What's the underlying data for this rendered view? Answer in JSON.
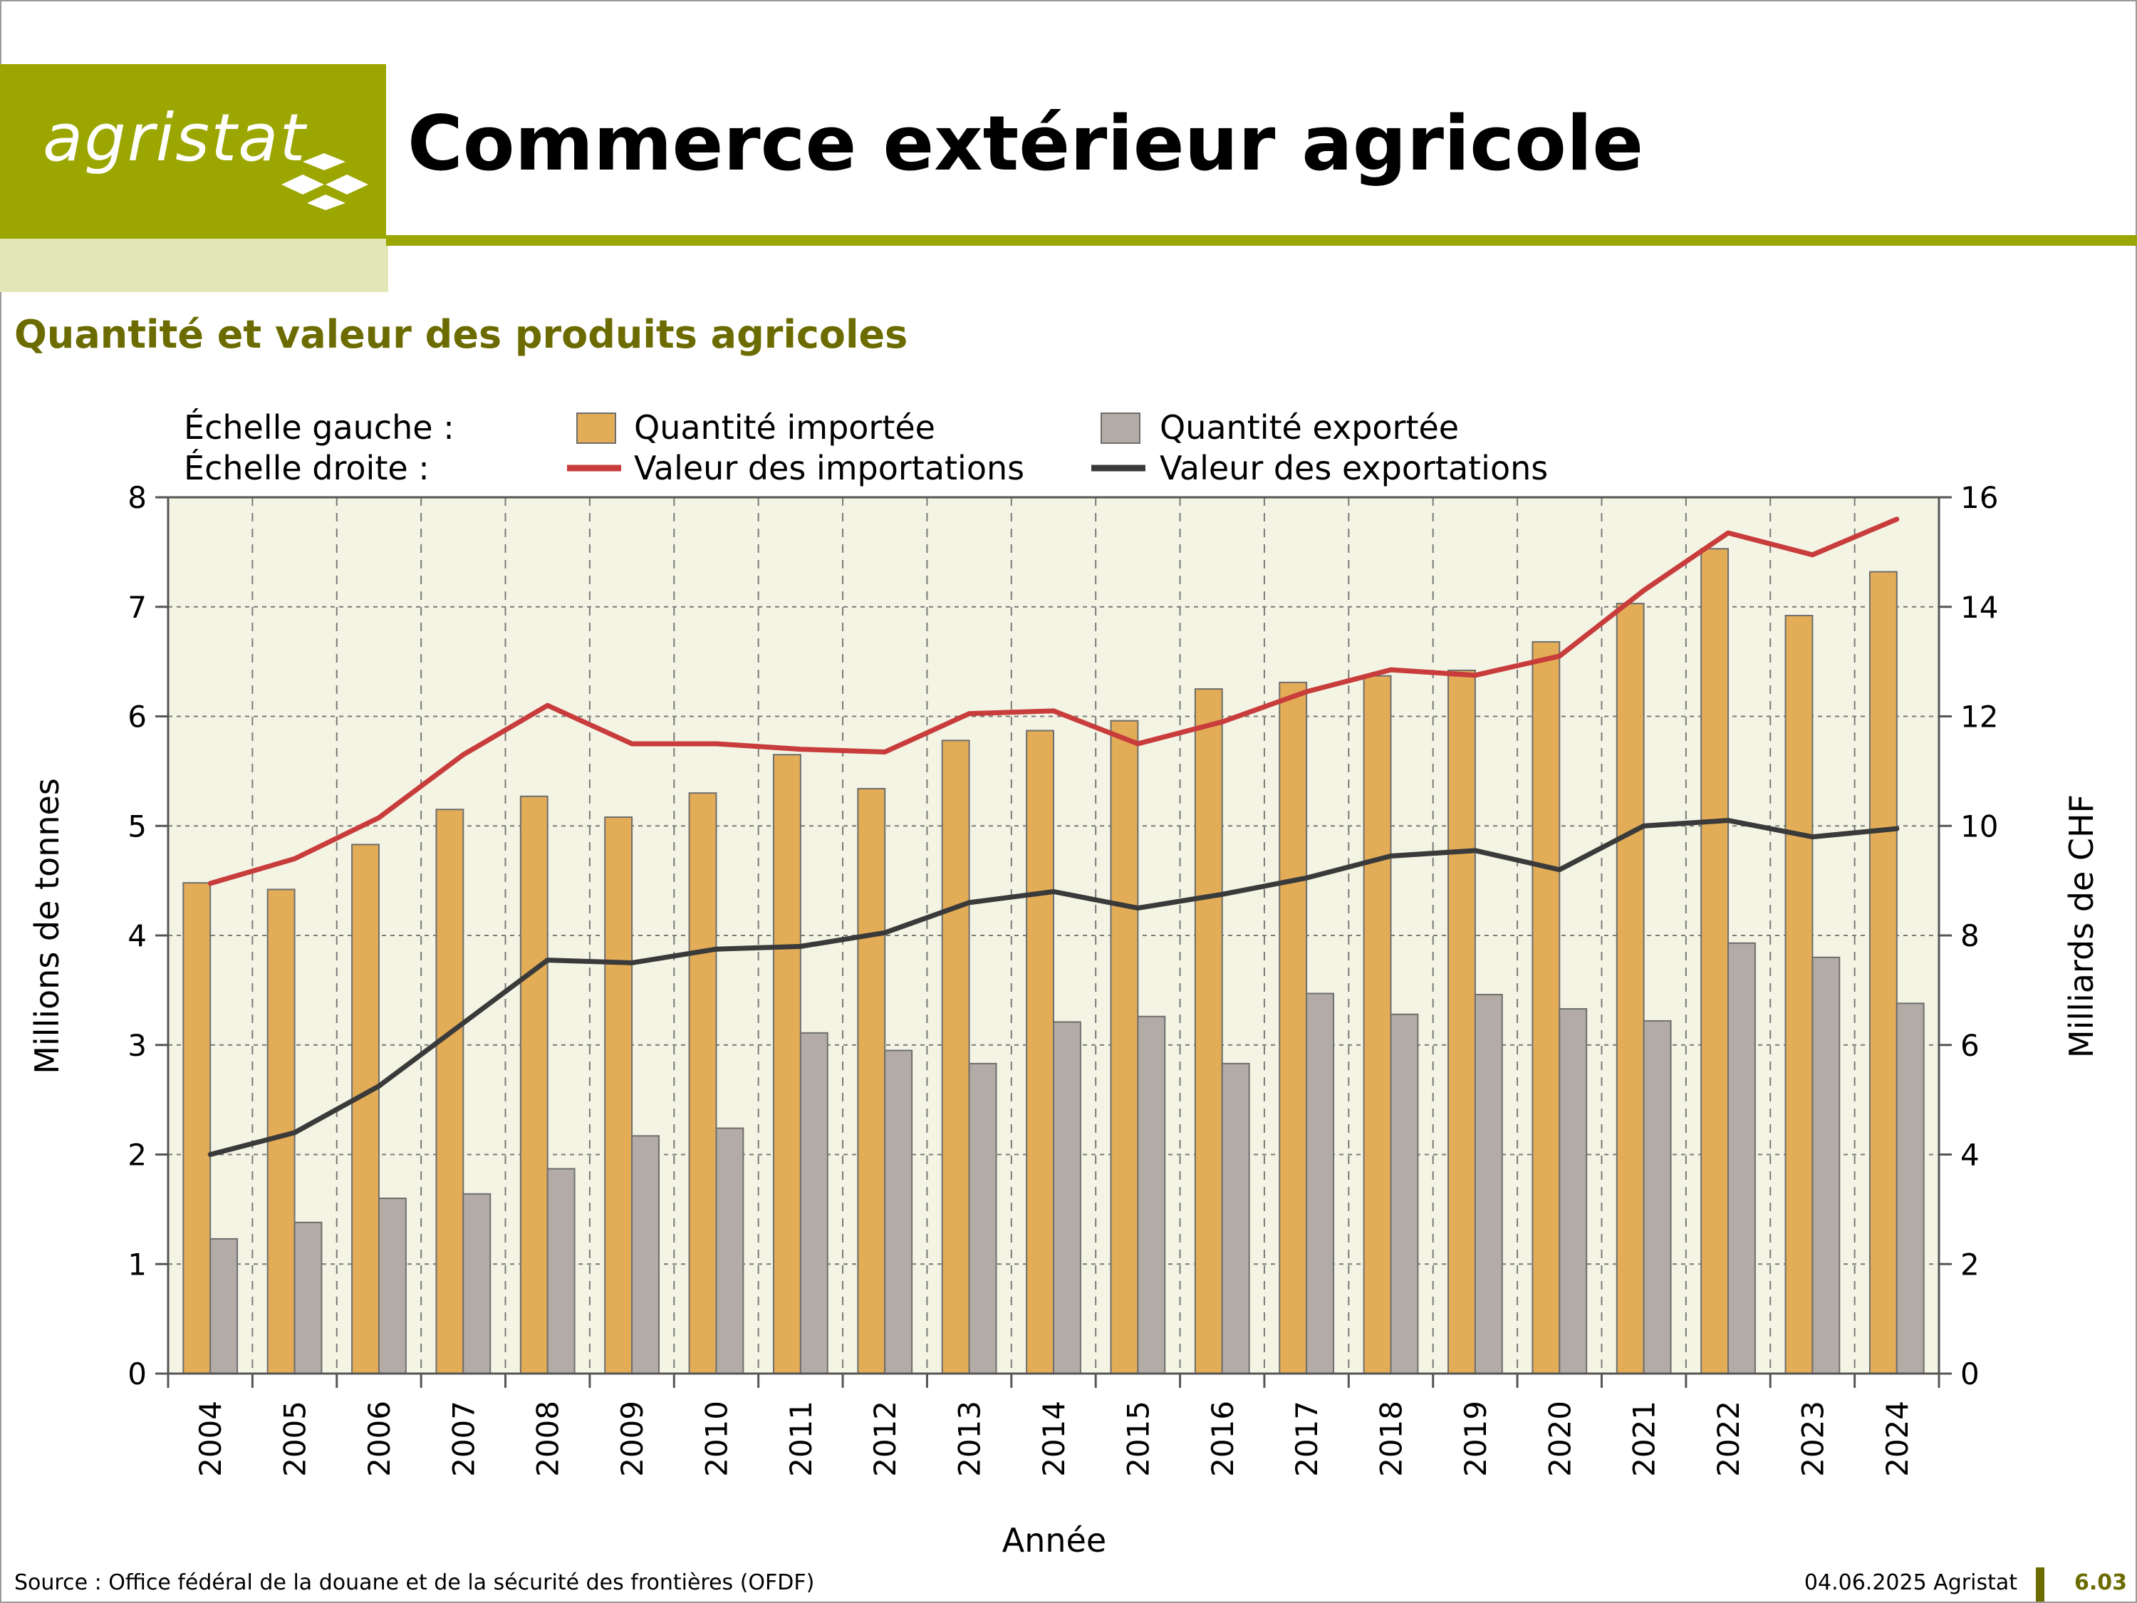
{
  "header": {
    "logo_text": "agristat",
    "title": "Commerce extérieur agricole",
    "subtitle": "Quantité et valeur des produits agricoles"
  },
  "legend": {
    "left_scale_label": "Échelle gauche :",
    "right_scale_label": "Échelle droite :",
    "placement": "top"
  },
  "colors": {
    "brand": "#9ca600",
    "brand_light": "#e3e7b8",
    "subtitle": "#6b6b00",
    "plot_background": "#f4f4e4",
    "imports_bar": "#e3ac57",
    "exports_bar": "#b3aca6",
    "imports_line": "#c83c3c",
    "exports_line": "#3a3a3a"
  },
  "chart_data": {
    "type": "bar",
    "xlabel": "Année",
    "ylabel_left": "Millions de tonnes",
    "ylabel_right": "Milliards de CHF",
    "ylim_left": [
      0,
      8
    ],
    "ylim_right": [
      0,
      16
    ],
    "yticks_left": [
      "0",
      "1",
      "2",
      "3",
      "4",
      "5",
      "6",
      "7",
      "8"
    ],
    "yticks_right": [
      "0",
      "2",
      "4",
      "6",
      "8",
      "10",
      "12",
      "14",
      "16"
    ],
    "grid": true,
    "categories": [
      "2004",
      "2005",
      "2006",
      "2007",
      "2008",
      "2009",
      "2010",
      "2011",
      "2012",
      "2013",
      "2014",
      "2015",
      "2016",
      "2017",
      "2018",
      "2019",
      "2020",
      "2021",
      "2022",
      "2023",
      "2024"
    ],
    "series": [
      {
        "name": "Quantité importée",
        "type": "bar",
        "axis": "left",
        "values": [
          4.48,
          4.42,
          4.83,
          5.15,
          5.27,
          5.08,
          5.3,
          5.65,
          5.34,
          5.78,
          5.87,
          5.96,
          6.25,
          6.31,
          6.37,
          6.42,
          6.68,
          7.03,
          7.53,
          6.92,
          7.32
        ]
      },
      {
        "name": "Quantité exportée",
        "type": "bar",
        "axis": "left",
        "values": [
          1.23,
          1.38,
          1.6,
          1.64,
          1.87,
          2.17,
          2.24,
          3.11,
          2.95,
          2.83,
          3.21,
          3.26,
          2.83,
          3.47,
          3.28,
          3.46,
          3.33,
          3.22,
          3.93,
          3.8,
          3.38
        ]
      },
      {
        "name": "Valeur des importations",
        "type": "line",
        "axis": "right",
        "values": [
          8.95,
          9.4,
          10.15,
          11.3,
          12.2,
          11.5,
          11.5,
          11.4,
          11.35,
          12.05,
          12.1,
          11.5,
          11.9,
          12.45,
          12.85,
          12.75,
          13.1,
          14.3,
          15.35,
          14.95,
          15.6
        ]
      },
      {
        "name": "Valeur des exportations",
        "type": "line",
        "axis": "right",
        "values": [
          4.0,
          4.4,
          5.25,
          6.4,
          7.55,
          7.5,
          7.75,
          7.8,
          8.05,
          8.6,
          8.8,
          8.5,
          8.75,
          9.05,
          9.45,
          9.55,
          9.2,
          10.0,
          10.1,
          9.8,
          9.95
        ]
      }
    ]
  },
  "footer": {
    "source": "Source : Office fédéral de la douane et de la sécurité des frontières (OFDF)",
    "date": "04.06.2025 Agristat",
    "page_number": "6.03"
  }
}
